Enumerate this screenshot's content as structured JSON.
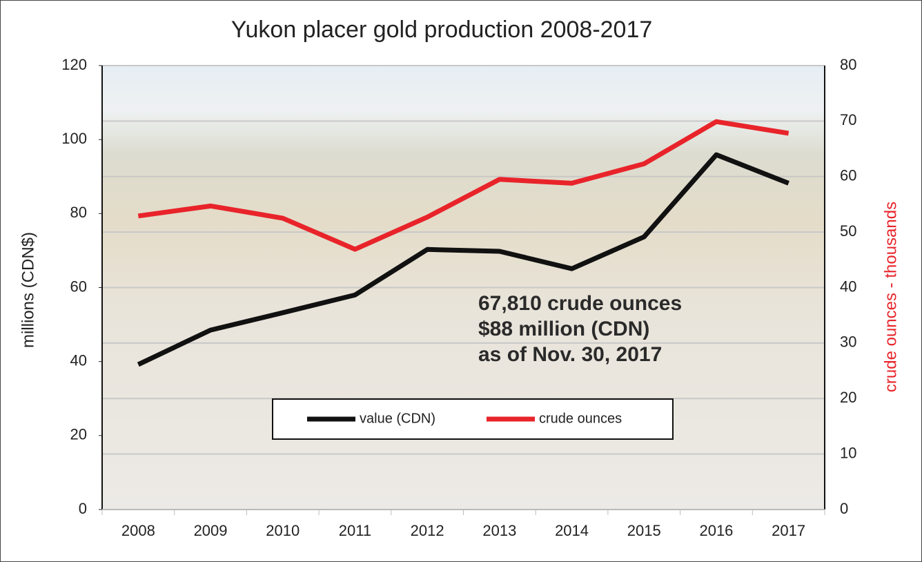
{
  "chart_data": {
    "type": "line",
    "title": "Yukon placer gold production 2008-2017",
    "categories": [
      "2008",
      "2009",
      "2010",
      "2011",
      "2012",
      "2013",
      "2014",
      "2015",
      "2016",
      "2017"
    ],
    "series": [
      {
        "name": "value (CDN)",
        "color": "#111111",
        "values": [
          39.2,
          48.5,
          53.2,
          58,
          70.3,
          69.8,
          65.1,
          73.7,
          95.9,
          88.2
        ]
      },
      {
        "name": "crude ounces",
        "color": "#e8242a",
        "axis": "y2",
        "values": [
          52.9,
          54.7,
          52.5,
          46.9,
          52.7,
          59.5,
          58.8,
          62.3,
          69.9,
          67.8
        ]
      }
    ],
    "ylabel": "millions (CDN$)",
    "y2label": "crude ounces - thousands",
    "ylim": [
      0,
      120
    ],
    "yticks": [
      0,
      20,
      40,
      60,
      80,
      100,
      120
    ],
    "y2lim": [
      0,
      80
    ],
    "y2ticks": [
      0,
      10,
      20,
      30,
      40,
      50,
      60,
      70,
      80
    ],
    "grid": true,
    "annotation": [
      "67,810 crude ounces",
      "$88 million (CDN)",
      "as of Nov. 30, 2017"
    ]
  }
}
